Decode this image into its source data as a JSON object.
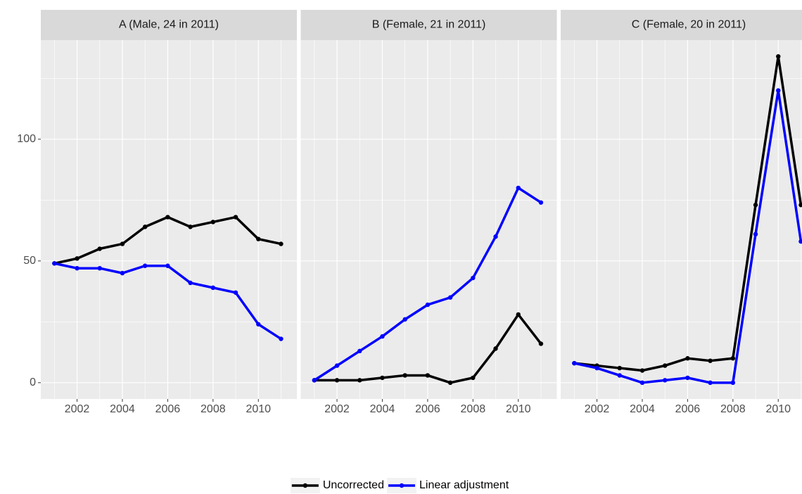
{
  "chart_data": {
    "type": "line",
    "x": [
      2001,
      2002,
      2003,
      2004,
      2005,
      2006,
      2007,
      2008,
      2009,
      2010,
      2011
    ],
    "xlim": [
      2000.4,
      2011.7
    ],
    "xticks": [
      2002,
      2004,
      2006,
      2008,
      2010
    ],
    "ylim": [
      -6.7,
      140.7
    ],
    "yticks": [
      0,
      50,
      100
    ],
    "grid": true,
    "legend": "bottom",
    "series": [
      {
        "name": "Uncorrected",
        "color": "#000000"
      },
      {
        "name": "Linear adjustment",
        "color": "#0000ff"
      }
    ],
    "panels": [
      {
        "title": "A (Male, 24 in 2011)",
        "series": [
          {
            "values": [
              49,
              51,
              55,
              57,
              64,
              68,
              64,
              66,
              68,
              59,
              57
            ]
          },
          {
            "values": [
              49,
              47,
              47,
              45,
              48,
              48,
              41,
              39,
              37,
              24,
              18
            ]
          }
        ]
      },
      {
        "title": "B (Female, 21 in 2011)",
        "series": [
          {
            "values": [
              1,
              1,
              1,
              2,
              3,
              3,
              0,
              2,
              14,
              28,
              16
            ]
          },
          {
            "values": [
              1,
              7,
              13,
              19,
              26,
              32,
              35,
              43,
              60,
              80,
              74
            ]
          }
        ]
      },
      {
        "title": "C (Female, 20 in 2011)",
        "series": [
          {
            "values": [
              8,
              7,
              6,
              5,
              7,
              10,
              9,
              10,
              73,
              134,
              73
            ]
          },
          {
            "values": [
              8,
              6,
              3,
              0,
              1,
              2,
              0,
              0,
              61,
              120,
              58
            ]
          }
        ]
      }
    ]
  }
}
